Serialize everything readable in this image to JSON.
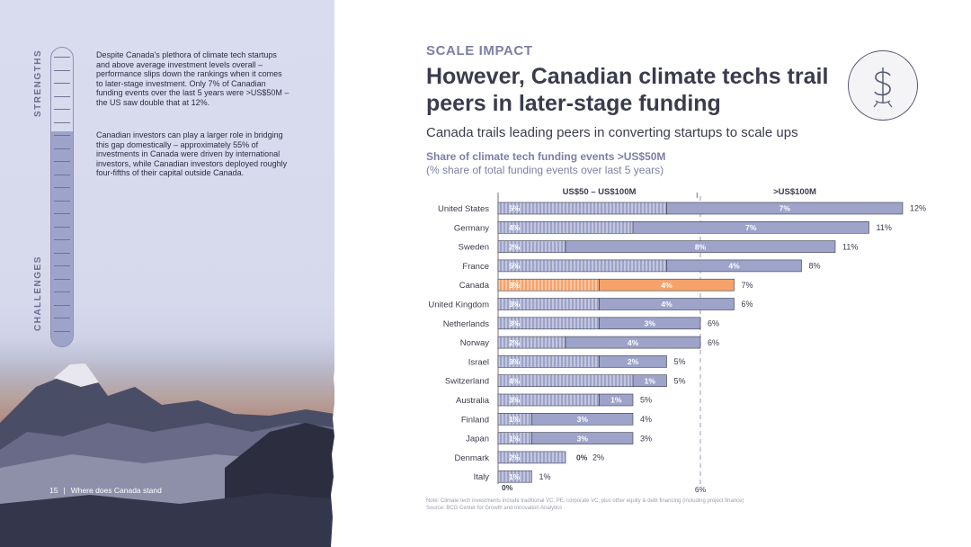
{
  "left": {
    "strengths_label": "STRENGTHS",
    "challenges_label": "CHALLENGES",
    "paragraph1": "Despite Canada's plethora of climate tech startups and above average investment levels overall – performance slips down the rankings when it comes to later-stage investment. Only 7% of Canadian funding events over the last 5 years were >US$50M – the US saw double that at 12%.",
    "paragraph2": "Canadian investors can play a larger role in bridging this gap domestically – approximately 55% of investments in Canada were driven by international investors, while Canadian investors deployed roughly four-fifths of their capital outside Canada.",
    "page_number": "15",
    "footer_text": "Where does Canada stand",
    "thermometer_fill": 0.72
  },
  "header": {
    "section_label": "SCALE IMPACT",
    "title": "However, Canadian climate techs trail peers in later-stage funding",
    "subtitle": "Canada trails leading peers in converting startups to scale ups",
    "icon": "dollar-coin-icon"
  },
  "chart_data": {
    "type": "bar",
    "orientation": "horizontal",
    "stacked": true,
    "title": "Share of climate tech funding events >US$50M",
    "subtitle": "(% share of total funding events over last 5 years)",
    "categories": [
      "United States",
      "Germany",
      "Sweden",
      "France",
      "Canada",
      "United Kingdom",
      "Netherlands",
      "Norway",
      "Israel",
      "Switzerland",
      "Australia",
      "Finland",
      "Japan",
      "Denmark",
      "Italy"
    ],
    "series": [
      {
        "name": "US$50 – US$100M",
        "values": [
          5,
          4,
          2,
          5,
          3,
          3,
          3,
          2,
          3,
          4,
          3,
          1,
          1,
          2,
          1
        ]
      },
      {
        "name": ">US$100M",
        "values": [
          7,
          7,
          8,
          4,
          4,
          4,
          3,
          4,
          2,
          1,
          1,
          3,
          3,
          0,
          0
        ]
      }
    ],
    "totals": [
      12,
      11,
      11,
      8,
      7,
      6,
      6,
      6,
      5,
      5,
      5,
      4,
      3,
      2,
      1
    ],
    "segment_labels": [
      [
        "5%",
        "7%"
      ],
      [
        "4%",
        "7%"
      ],
      [
        "2%",
        "8%"
      ],
      [
        "5%",
        "4%"
      ],
      [
        "3%",
        "4%"
      ],
      [
        "3%",
        "4%"
      ],
      [
        "3%",
        "3%"
      ],
      [
        "2%",
        "4%"
      ],
      [
        "3%",
        "2%"
      ],
      [
        "4%",
        "1%"
      ],
      [
        "3%",
        "1%"
      ],
      [
        "1%",
        "3%"
      ],
      [
        "1%",
        "3%"
      ],
      [
        "2%",
        "0%"
      ],
      [
        "1%",
        ""
      ]
    ],
    "total_labels": [
      "12%",
      "11%",
      "11%",
      "8%",
      "7%",
      "6%",
      "6%",
      "6%",
      "5%",
      "5%",
      "5%",
      "4%",
      "3%",
      "2%",
      "1%"
    ],
    "highlight": "Canada",
    "axis_ticks": [
      "0%",
      "6%"
    ],
    "reference_line": 6,
    "xlim": [
      0,
      12
    ],
    "colors": {
      "bar": "#9da3c9",
      "bar_border": "#3a3c4d",
      "highlight": "#f6a26b",
      "hatch": "#ffffff"
    }
  },
  "note": {
    "line1": "Note: Climate tech investments include traditional VC, PE, corporate VC, plus other equity & debt financing (including project finance)",
    "line2": "Source: BCG Center for Growth and Innovation Analytics"
  }
}
